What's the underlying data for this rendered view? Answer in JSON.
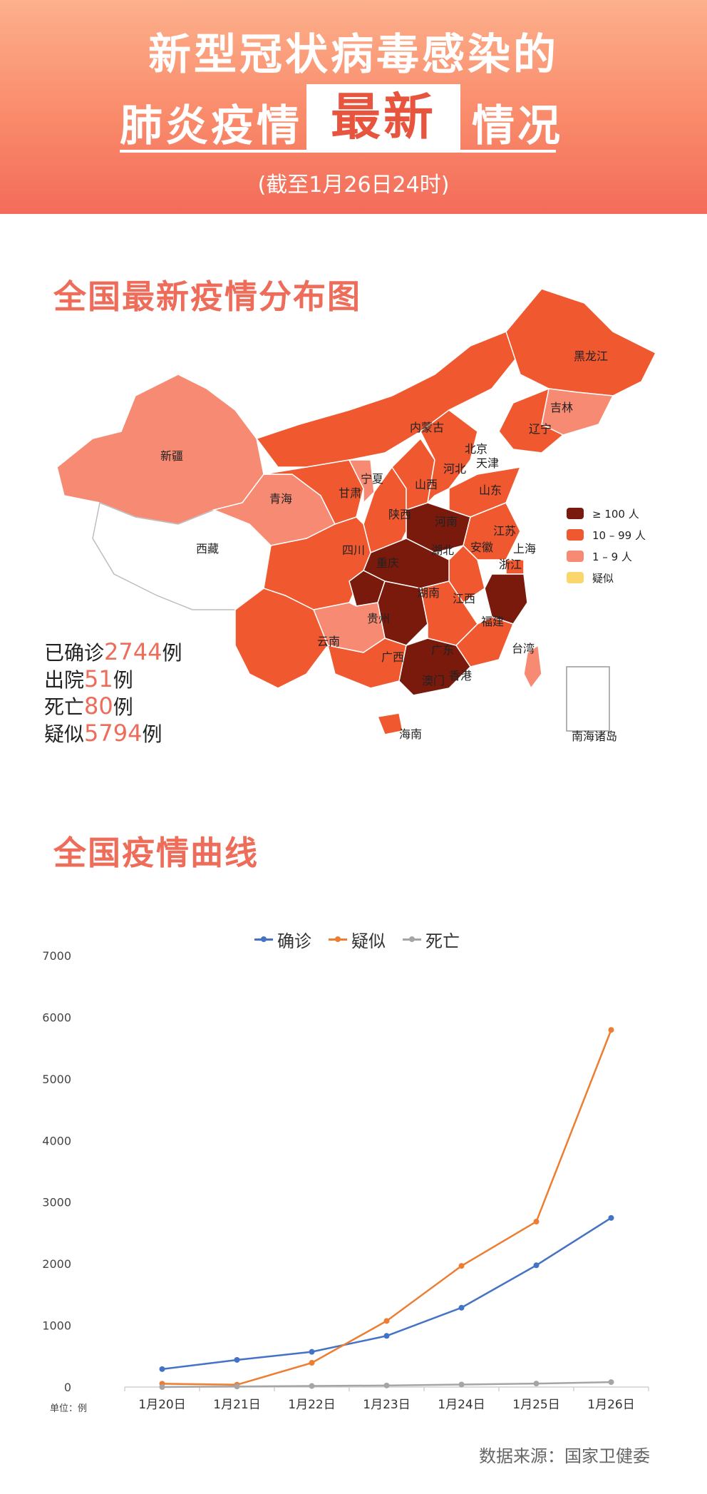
{
  "header": {
    "line1": "新型冠状病毒感染的",
    "line2_left": "肺炎疫情",
    "line2_box": "最新",
    "line2_right": "情况",
    "date": "(截至1月26日24时)"
  },
  "map_section": {
    "title": "全国最新疫情分布图",
    "legend": [
      {
        "label": "≥ 100 人",
        "color": "#7a1a0c"
      },
      {
        "label": "10 – 99 人",
        "color": "#f0582f"
      },
      {
        "label": "1 – 9 人",
        "color": "#f78a72"
      },
      {
        "label": "疑似",
        "color": "#fbd66a"
      }
    ],
    "regions": [
      "黑龙江",
      "吉林",
      "辽宁",
      "内蒙古",
      "新疆",
      "北京",
      "天津",
      "河北",
      "宁夏",
      "山西",
      "山东",
      "甘肃",
      "青海",
      "陕西",
      "河南",
      "江苏",
      "西藏",
      "四川",
      "湖北",
      "安徽",
      "上海",
      "重庆",
      "浙江",
      "湖南",
      "江西",
      "贵州",
      "福建",
      "云南",
      "台湾",
      "广东",
      "广西",
      "香港",
      "澳门",
      "海南",
      "南海诸岛"
    ],
    "stats": [
      {
        "label": "已确诊",
        "value": "2744",
        "unit": "例"
      },
      {
        "label": "出院",
        "value": "51",
        "unit": "例"
      },
      {
        "label": "死亡",
        "value": "80",
        "unit": "例"
      },
      {
        "label": "疑似",
        "value": "5794",
        "unit": "例"
      }
    ]
  },
  "curve_section": {
    "title": "全国疫情曲线",
    "unit_label": "单位：例"
  },
  "colors": {
    "confirmed": "#4472c4",
    "suspected": "#ed7d31",
    "death": "#a5a5a5"
  },
  "chart_data": {
    "type": "line",
    "categories": [
      "1月20日",
      "1月21日",
      "1月22日",
      "1月23日",
      "1月24日",
      "1月25日",
      "1月26日"
    ],
    "series": [
      {
        "name": "确诊",
        "values": [
          291,
          440,
          571,
          830,
          1287,
          1975,
          2744
        ]
      },
      {
        "name": "疑似",
        "values": [
          54,
          37,
          393,
          1072,
          1965,
          2684,
          5794
        ]
      },
      {
        "name": "死亡",
        "values": [
          0,
          9,
          17,
          25,
          41,
          56,
          80
        ]
      }
    ],
    "ylim": [
      0,
      7000
    ],
    "yticks": [
      0,
      1000,
      2000,
      3000,
      4000,
      5000,
      6000,
      7000
    ],
    "legend_position": "top",
    "grid": false
  },
  "footer": {
    "source": "数据来源：国家卫健委"
  }
}
